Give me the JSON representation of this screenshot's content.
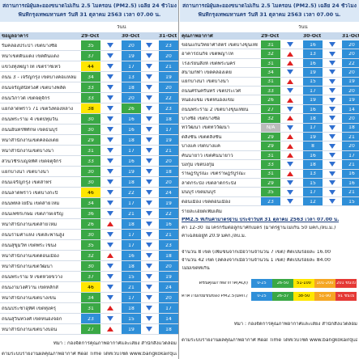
{
  "left": {
    "title": [
      "สถานการณ์ฝุ่นละอองขนาดไม่เกิน 2.5 ไมครอน (PM2.5) เฉลี่ย 24 ชั่วโมง",
      "พื้นที่กรุงเทพมหานคร วันที่ 31 ตุลาคม 2563 เวลา 07.00 น."
    ],
    "today": "วันนี้",
    "columns": [
      "ข้อมูลอาคาร",
      "29-Oct",
      "30-Oct",
      "31-Oct"
    ],
    "rows": [
      [
        "ริมคลองประปา เขตบางซื่อ",
        35,
        "down",
        20,
        "down",
        23
      ],
      [
        "หน้าเขตดินแดง เขตดินแดง",
        37,
        "down",
        19,
        "down",
        20
      ],
      [
        "แขวงทุ่งพญาไท เขตราชเทวี",
        44,
        "down",
        17,
        "down",
        21
      ],
      [
        "ถนน 3 - เจริญกรุง เขตบางคอแหลม",
        34,
        "down",
        13,
        "down",
        19
      ],
      [
        "ถนนจรัญสนิทวงศ์ เขตบางพลัด",
        33,
        "down",
        18,
        "down",
        20
      ],
      [
        "ถนนวิภาวดี เขตจตุจักร",
        33,
        "down",
        20,
        "down",
        22
      ],
      [
        "แยกลาดพร้าว 71 เขตวังทองหลาง",
        38,
        "down",
        26,
        "down",
        23
      ],
      [
        "ถนนพระราม 4 เขตปทุมวัน",
        30,
        "down",
        16,
        "down",
        18
      ],
      [
        "ถนนอินทรพิทักษ์ เขตธนบุรี",
        30,
        "down",
        16,
        "down",
        17
      ],
      [
        "หน้าสำนักงานเขตคลองเตย",
        29,
        "down",
        18,
        "down",
        19
      ],
      [
        "หน้าสำนักงานเขตบางนา",
        31,
        "down",
        17,
        "down",
        21
      ],
      [
        "สวนวชิรเบญจทัศ เขตจตุจักร",
        33,
        "down",
        16,
        "down",
        20
      ],
      [
        "แยกบางนา เขตบางนา",
        30,
        "down",
        19,
        "down",
        18
      ],
      [
        "ถนนเจริญกรุง เขตสาทร",
        30,
        "down",
        18,
        "down",
        20
      ],
      [
        "ถนนลาดพร้าว เขตบางกะปิ",
        46,
        "down",
        22,
        "down",
        24
      ],
      [
        "ถนนพหลโยธิน เขตสายไหม",
        34,
        "down",
        17,
        "down",
        19
      ],
      [
        "ถนนเพชรเกษม เขตภาษีเจริญ",
        36,
        "down",
        21,
        "down",
        22
      ],
      [
        "หน้าสำนักงานเขตสายไหม",
        26,
        "up",
        18,
        "down",
        16
      ],
      [
        "ถนนรามคำแหง เขตสะพานสูง",
        30,
        "down",
        17,
        "down",
        21
      ],
      [
        "ถนนสุขุมวิท เขตพระโขนง",
        35,
        "down",
        17,
        "down",
        23
      ],
      [
        "หน้าสำนักงานเขตดอนเมือง",
        32,
        "up",
        16,
        "down",
        18
      ],
      [
        "หน้าสำนักงานเขตวัฒนา",
        30,
        "down",
        18,
        "down",
        20
      ],
      [
        "ถนนพระราม 9 เขตห้วยขวาง",
        37,
        "down",
        15,
        "down",
        19
      ],
      [
        "ถนนงามวงศ์วาน เขตหลักสี่",
        46,
        "down",
        21,
        "down",
        24
      ],
      [
        "หน้าสำนักงานเขตบางเขน",
        34,
        "down",
        17,
        "down",
        20
      ],
      [
        "ถนนประชาอุทิศ เขตทุ่งครุ",
        31,
        "up",
        18,
        "down",
        17
      ],
      [
        "ถนนสุวินทวงศ์ เขตหนองจอก",
        23,
        "down",
        15,
        "down",
        14
      ],
      [
        "หน้าสำนักงานเขตบางบอน",
        27,
        "up",
        19,
        "down",
        18
      ]
    ],
    "source": [
      "ที่มา : กองจัดการคุณภาพอากาศและเสียง สำนักสิ่งแวดล้อม",
      "ตามระบบรายงานผลคุณภาพอากาศ Real Time ได้ที่เว็บไซต์ www.bangkokairquality.com"
    ]
  },
  "right": {
    "title": [
      "สถานการณ์ฝุ่นละอองขนาดไม่เกิน 2.5 ไมครอน (PM2.5) เฉลี่ย 24 ชั่วโมง",
      "พื้นที่กรุงเทพมหานคร วันที่ 31 ตุลาคม 2563 เวลา 07.00 น."
    ],
    "today": "วันนี้",
    "columns": [
      "คุณภาพอากาศ",
      "29-Oct",
      "30-Oct",
      "31-Oct"
    ],
    "rows": [
      [
        "ขอนแก่นวิทยาศาสตร์ เขตบางขุนเทียน",
        31,
        "down",
        16,
        "down",
        20
      ],
      [
        "อาคารธนกิจ เขตพญาไท",
        32,
        "up",
        13,
        "down",
        20
      ],
      [
        "โรงเรียนสิงห์ เขตพระนคร",
        31,
        "up",
        16,
        "down",
        22
      ],
      [
        "สนามกีฬา เขตคลองเตย",
        34,
        "down",
        19,
        "down",
        20
      ],
      [
        "แยกบางนา เขตบางนา",
        31,
        "up",
        15,
        "down",
        19
      ],
      [
        "ถนนศรีนครินทร์ เขตประเวศ",
        33,
        "down",
        17,
        "down",
        20
      ],
      [
        "หนองแขม เขตหนองแขม",
        26,
        "up",
        19,
        "down",
        19
      ],
      [
        "ถนนพระราม 2 เขตบางขุนเทียน",
        27,
        "down",
        16,
        "down",
        14
      ],
      [
        "บางซื่อ เขตบางซื่อ",
        32,
        "up",
        18,
        "down",
        20
      ],
      [
        "ทวีวัฒนา เขตทวีวัฒนา",
        "N/A",
        "down",
        17,
        "down",
        18
      ],
      [
        "ตลิ่งชัน เขตตลิ่งชัน",
        29,
        "up",
        19,
        "down",
        21
      ],
      [
        "บางแค เขตบางแค",
        29,
        "up",
        8,
        "down",
        20
      ],
      [
        "คันนายาว เขตคันนายาว",
        31,
        "up",
        16,
        "down",
        17
      ],
      [
        "บึงกุ่ม เขตบึงกุ่ม",
        33,
        "down",
        18,
        "down",
        21
      ],
      [
        "ราษฎร์บูรณะ เขตราษฎร์บูรณะ",
        31,
        "up",
        13,
        "down",
        16
      ],
      [
        "ลาดกระบัง เขตลาดกระบัง",
        29,
        "down",
        15,
        "down",
        16
      ],
      [
        "มีนบุรี เขตมีนบุรี",
        35,
        "down",
        17,
        "down",
        21
      ],
      [
        "ดอนเมือง เขตดอนเมือง",
        23,
        "down",
        12,
        "down",
        15
      ]
    ],
    "notes_title": "รายละเอียดเพิ่มเติม",
    "notes_head": "PM2.5 ที่เกินค่ามาตรฐาน ประจำวันที่ 31 ตุลาคม 2563 เวลา 07.00 น.",
    "notes": [
      "ค่า 12-30 ไมโครกรัมต่อลูกบาศก์เมตร (มาตรฐานไม่เกิน 50 มคก./ลบ.ม.)",
      "ค่าเฉลี่ยอยู่ที่ 20.9 มคก./ลบ.ม.",
      "",
      "จำนวน 8 เขต (เพิ่มขึ้นจากเมื่อวานจำนวน 7 เขต) คิดเป็นร้อยละ 16.00",
      "จำนวน 42 เขต (ลดลงจากเมื่อวานจำนวน 1 เขต) คิดเป็นร้อยละ 84.00",
      "ไม่มีเขตที่เกิน"
    ],
    "legend": [
      {
        "label": "ดัชนีคุณภาพอากาศ(AQI)",
        "ranges": [
          "0-25",
          "26-50",
          "51-100",
          "101-200",
          "201 ขึ้นไป"
        ]
      },
      {
        "label": "ค่าความเข้มข้นของ PM2.5(มคก./ลบ.ม.)",
        "ranges": [
          "0-25",
          "26-37",
          "38-50",
          "51-90",
          "91 ขึ้นไป"
        ]
      }
    ],
    "source": [
      "ที่มา : กองจัดการคุณภาพอากาศและเสียง สำนักสิ่งแวดล้อม",
      "ตามระบบรายงานผลคุณภาพอากาศ Real Time ได้ที่เว็บไซต์ www.bangkokairquality.com"
    ]
  },
  "scale": [
    {
      "min": 0,
      "color": "#2f8fd8"
    },
    {
      "min": 26,
      "color": "#3aa845"
    },
    {
      "min": 38,
      "color": "#ffe600"
    },
    {
      "min": 51,
      "color": "#f5a623"
    },
    {
      "min": 91,
      "color": "#e53935"
    }
  ]
}
